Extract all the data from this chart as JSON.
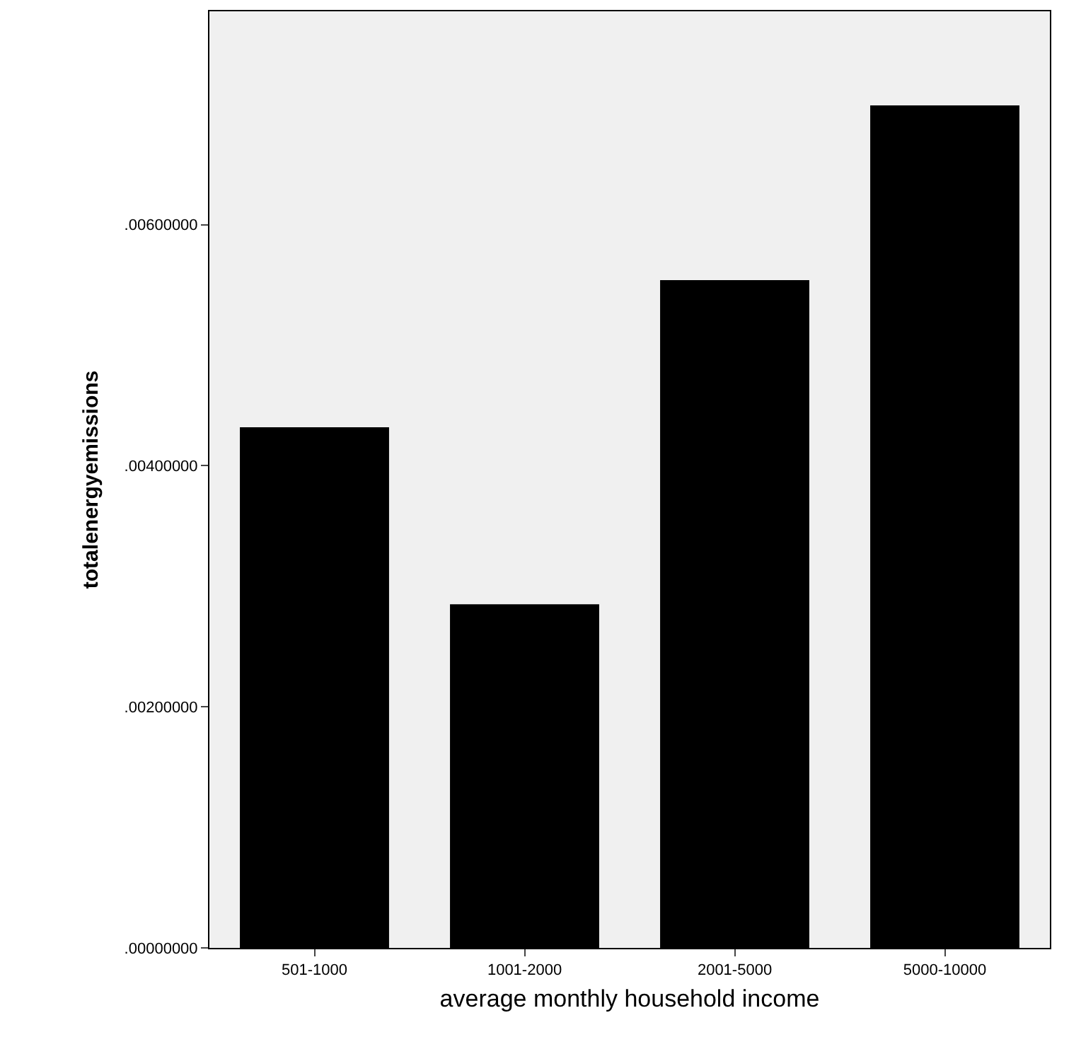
{
  "chart_data": {
    "type": "bar",
    "xlabel": "average monthly household income",
    "ylabel": "totalenergyemissions",
    "categories": [
      "501-1000",
      "1001-2000",
      "2001-5000",
      "5000-10000"
    ],
    "values": [
      0.00432,
      0.00285,
      0.00554,
      0.00699
    ],
    "color": "#000000",
    "ylim": [
      0,
      0.00777
    ],
    "yticks": [
      {
        "value": 0,
        "label": ".00000000"
      },
      {
        "value": 0.002,
        "label": ".00200000"
      },
      {
        "value": 0.004,
        "label": ".00400000"
      },
      {
        "value": 0.006,
        "label": ".00600000"
      }
    ],
    "grid": false
  }
}
